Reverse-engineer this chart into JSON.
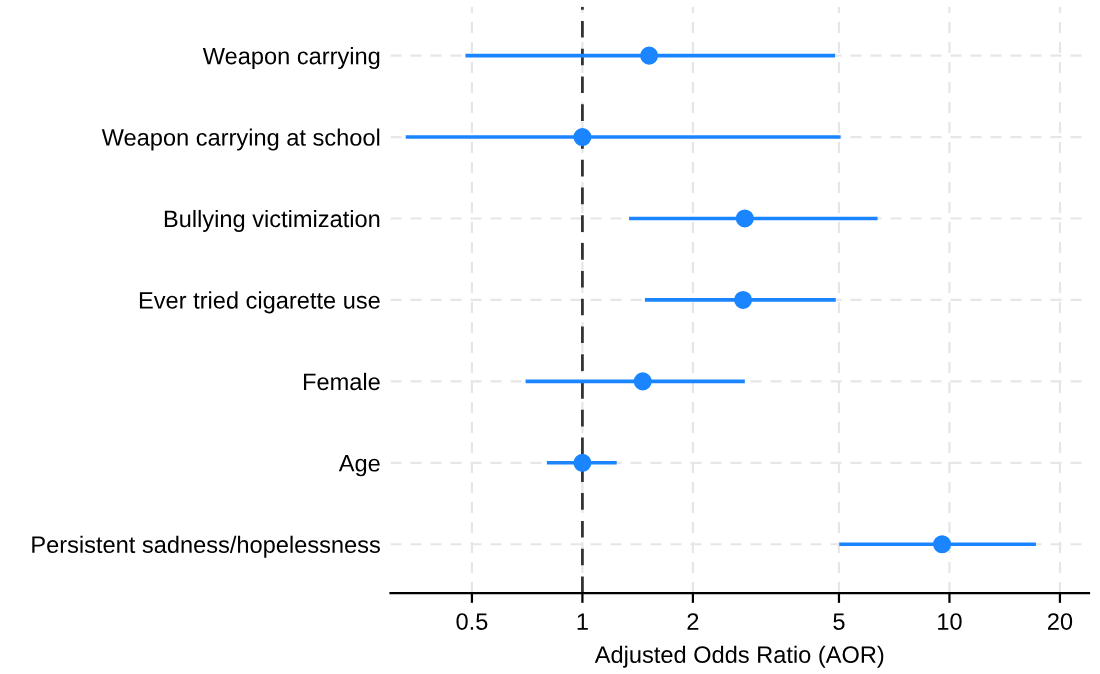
{
  "chart_data": {
    "type": "scatter",
    "orientation": "horizontal",
    "xlabel": "Adjusted Odds Ratio (AOR)",
    "categories": [
      "Weapon carrying",
      "Weapon carrying at school",
      "Bullying victimization",
      "Ever tried cigarette use",
      "Female",
      "Age",
      "Persistent sadness/hopelessness"
    ],
    "color": "#1a85ff",
    "values": [
      1.52,
      1.0,
      2.77,
      2.74,
      1.46,
      1.0,
      9.55
    ],
    "errors": [
      [
        0.48,
        4.88
      ],
      [
        0.33,
        5.05
      ],
      [
        1.34,
        6.37
      ],
      [
        1.48,
        4.9
      ],
      [
        0.7,
        2.77
      ],
      [
        0.8,
        1.24
      ],
      [
        5.01,
        17.2
      ]
    ],
    "log": "x",
    "xlim": [
      0.3,
      24
    ],
    "xticks": [
      0.5,
      1,
      2,
      5,
      10,
      20
    ],
    "grid": true,
    "marker": "circle",
    "ref_lines": [
      {
        "axis": "x",
        "value": 1,
        "color": "#333333",
        "line_style": "dashed"
      }
    ]
  }
}
